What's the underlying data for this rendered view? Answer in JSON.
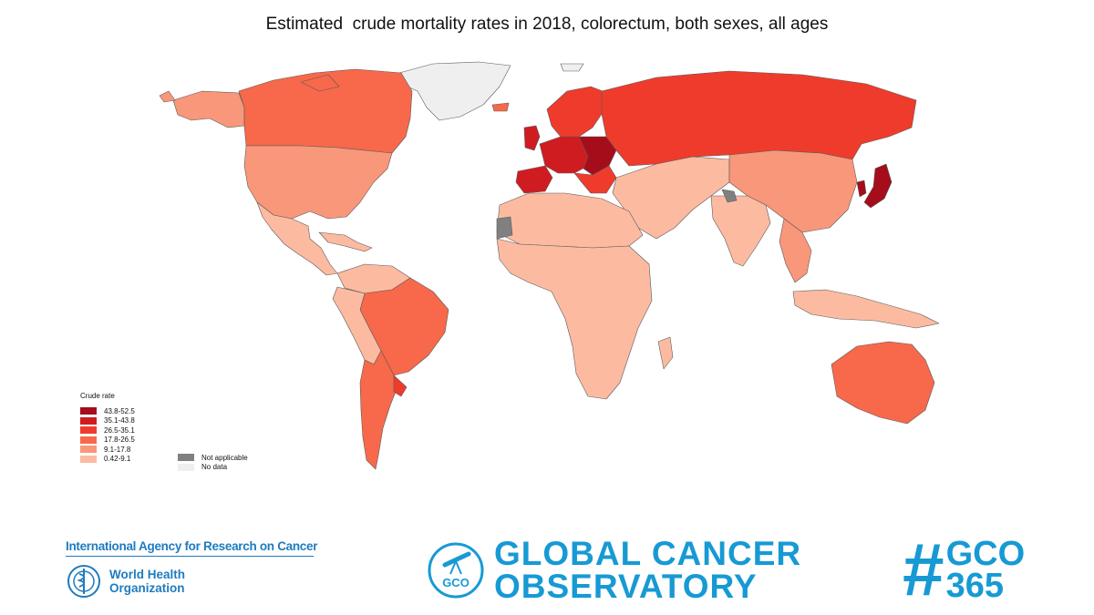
{
  "title": "Estimated  crude mortality rates in 2018, colorectum, both sexes, all ages",
  "colors": {
    "r1": "#a50d1b",
    "r2": "#cf1c21",
    "r3": "#ef3b2c",
    "r4": "#f7694a",
    "r5": "#f9977a",
    "r6": "#fcbba1",
    "not_applicable": "#808080",
    "no_data": "#efefef",
    "brand_blue": "#179ad4"
  },
  "legend": {
    "title": "Crude rate",
    "items": [
      {
        "label": "43.8-52.5",
        "color": "#a50d1b"
      },
      {
        "label": "35.1-43.8",
        "color": "#cf1c21"
      },
      {
        "label": "26.5-35.1",
        "color": "#ef3b2c"
      },
      {
        "label": "17.8-26.5",
        "color": "#f7694a"
      },
      {
        "label": "9.1-17.8",
        "color": "#f9977a"
      },
      {
        "label": "0.42-9.1",
        "color": "#fcbba1"
      }
    ],
    "not_applicable": "Not applicable",
    "no_data": "No data"
  },
  "footer": {
    "iarc": "International Agency for Research on Cancer",
    "who_line1": "World Health",
    "who_line2": "Organization",
    "gco_line1": "GLOBAL CANCER",
    "gco_line2": "OBSERVATORY",
    "gco_badge": "GCO",
    "hash": "#",
    "gco365_line1": "GCO",
    "gco365_line2": "365"
  }
}
